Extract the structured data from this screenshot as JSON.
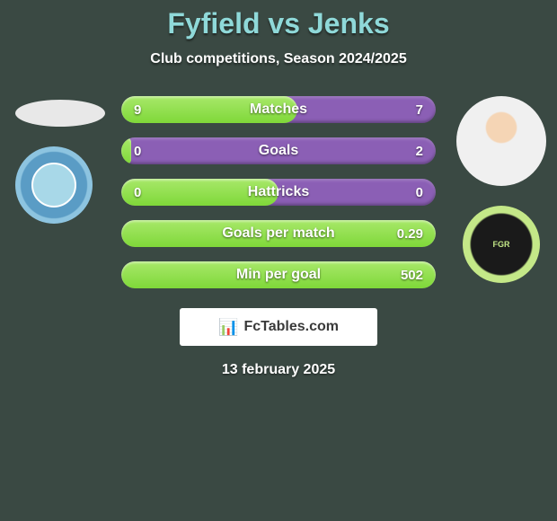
{
  "title": "Fyfield vs Jenks",
  "subtitle": "Club competitions, Season 2024/2025",
  "date": "13 february 2025",
  "branding": {
    "label": "FcTables.com",
    "icon": "📊"
  },
  "colors": {
    "background": "#3a4943",
    "title_color": "#8fd9d9",
    "text_color": "#ffffff",
    "bar_left_fill": "linear-gradient(to bottom, #a8e86a 0%, #7fd839 100%)",
    "bar_right_fill": "#8b5fb5",
    "branding_bg": "#ffffff",
    "branding_text": "#3a3a3a",
    "left_badge_outer": "#8dc4e0",
    "left_badge_inner": "#5a9cc5",
    "right_badge_outer": "#c4e888",
    "right_badge_inner": "#1a1a1a"
  },
  "typography": {
    "title_fontsize": 32,
    "subtitle_fontsize": 16,
    "stat_label_fontsize": 16,
    "stat_value_fontsize": 15,
    "date_fontsize": 16
  },
  "stats": [
    {
      "label": "Matches",
      "left_value": "9",
      "right_value": "7",
      "left_pct": 56
    },
    {
      "label": "Goals",
      "left_value": "0",
      "right_value": "2",
      "left_pct": 3
    },
    {
      "label": "Hattricks",
      "left_value": "0",
      "right_value": "0",
      "left_pct": 50
    },
    {
      "label": "Goals per match",
      "left_value": "",
      "right_value": "0.29",
      "left_pct": 100
    },
    {
      "label": "Min per goal",
      "left_value": "",
      "right_value": "502",
      "left_pct": 100
    }
  ],
  "left_player": {
    "name": "Fyfield"
  },
  "right_player": {
    "name": "Jenks"
  },
  "right_badge_text": "FGR"
}
